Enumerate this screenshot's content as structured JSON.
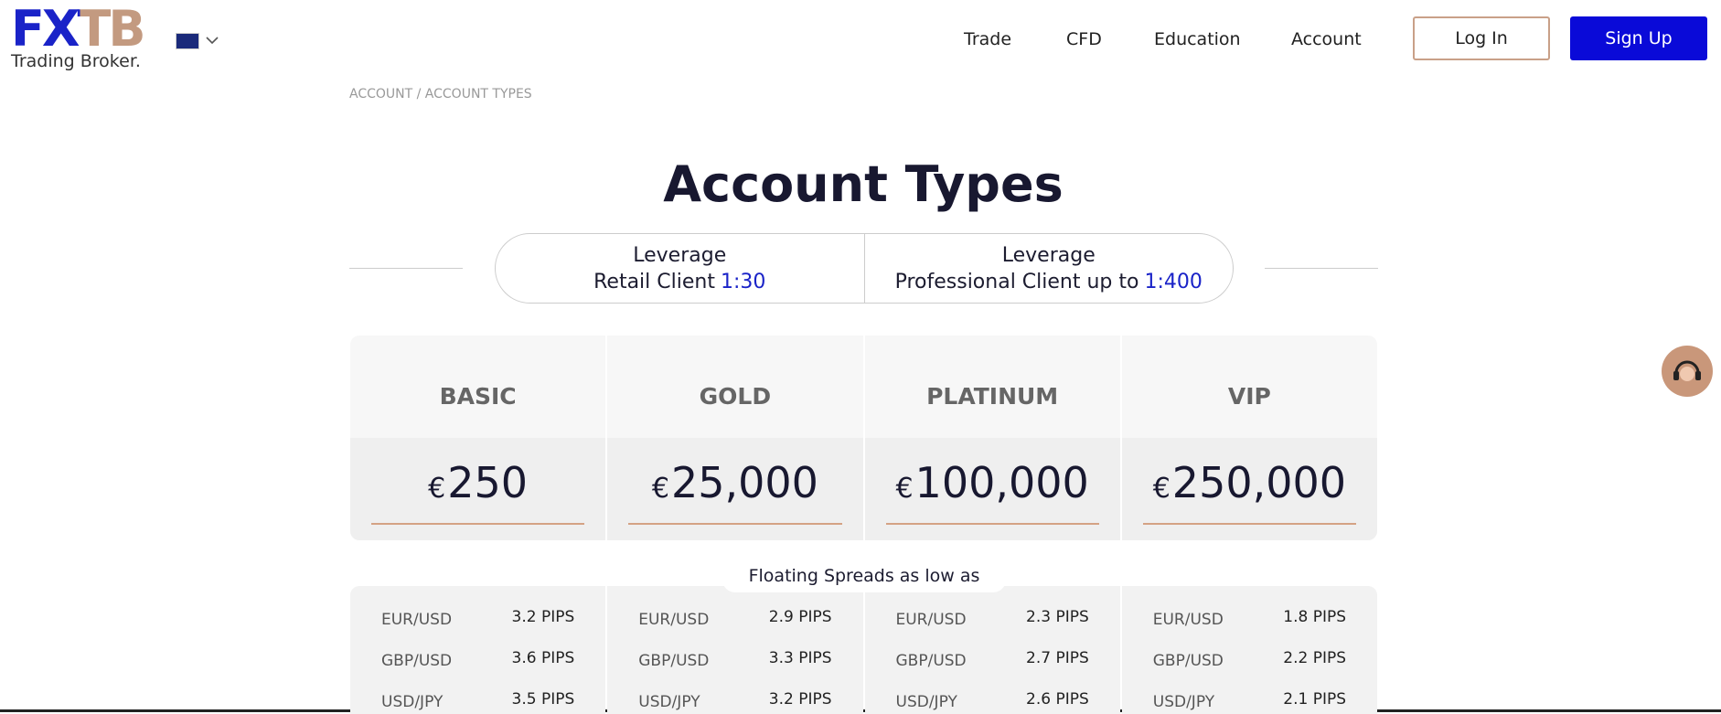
{
  "header": {
    "logo": "FXTB",
    "tagline": "Trading Broker.",
    "nav": [
      "Trade",
      "CFD",
      "Education",
      "Account"
    ],
    "login": "Log In",
    "signup": "Sign Up"
  },
  "breadcrumb": "ACCOUNT / ACCOUNT TYPES",
  "title": "Account Types",
  "leverage": [
    {
      "label": "Leverage",
      "client": "Retail Client",
      "ratio": "1:30"
    },
    {
      "label": "Leverage",
      "client": "Professional Client up to",
      "ratio": "1:400"
    }
  ],
  "spreads_label": "Floating Spreads as low as",
  "plans": [
    {
      "name": "BASIC",
      "currency": "€",
      "deposit": "250",
      "spreads": [
        {
          "pair": "EUR/USD",
          "value": "3.2 PIPS"
        },
        {
          "pair": "GBP/USD",
          "value": "3.6 PIPS"
        },
        {
          "pair": "USD/JPY",
          "value": "3.5 PIPS"
        }
      ]
    },
    {
      "name": "GOLD",
      "currency": "€",
      "deposit": "25,000",
      "spreads": [
        {
          "pair": "EUR/USD",
          "value": "2.9 PIPS"
        },
        {
          "pair": "GBP/USD",
          "value": "3.3 PIPS"
        },
        {
          "pair": "USD/JPY",
          "value": "3.2 PIPS"
        }
      ]
    },
    {
      "name": "PLATINUM",
      "currency": "€",
      "deposit": "100,000",
      "spreads": [
        {
          "pair": "EUR/USD",
          "value": "2.3 PIPS"
        },
        {
          "pair": "GBP/USD",
          "value": "2.7 PIPS"
        },
        {
          "pair": "USD/JPY",
          "value": "2.6 PIPS"
        }
      ]
    },
    {
      "name": "VIP",
      "currency": "€",
      "deposit": "250,000",
      "spreads": [
        {
          "pair": "EUR/USD",
          "value": "1.8 PIPS"
        },
        {
          "pair": "GBP/USD",
          "value": "2.2 PIPS"
        },
        {
          "pair": "USD/JPY",
          "value": "2.1 PIPS"
        }
      ]
    }
  ]
}
